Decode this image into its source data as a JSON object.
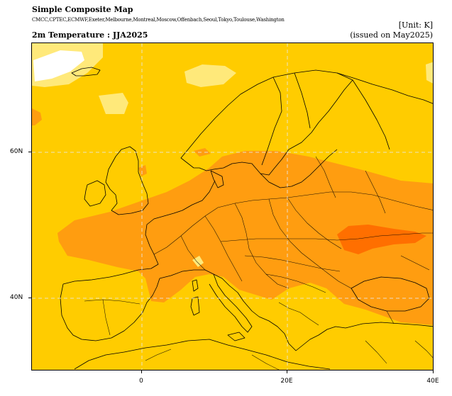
{
  "header": {
    "title": "Simple Composite Map",
    "models": "CMCC,CPTEC,ECMWF,Exeter,Melbourne,Montreal,Moscow,Offenbach,Seoul,Tokyo,Toulouse,Washington",
    "subtitle": "2m Temperature : JJA2025",
    "unit": "[Unit: K]",
    "issued": "(issued on May2025)"
  },
  "axes": {
    "lat_labels": [
      "60N",
      "40N"
    ],
    "lon_labels": [
      "0",
      "20E",
      "40E"
    ]
  },
  "colors": {
    "base": "#ffcc00",
    "light": "#ffe97a",
    "pale": "#fff6c2",
    "white": "#ffffff",
    "orange": "#ff9d10",
    "deep_orange": "#ff6f00",
    "grid": "#e8e8e8"
  }
}
